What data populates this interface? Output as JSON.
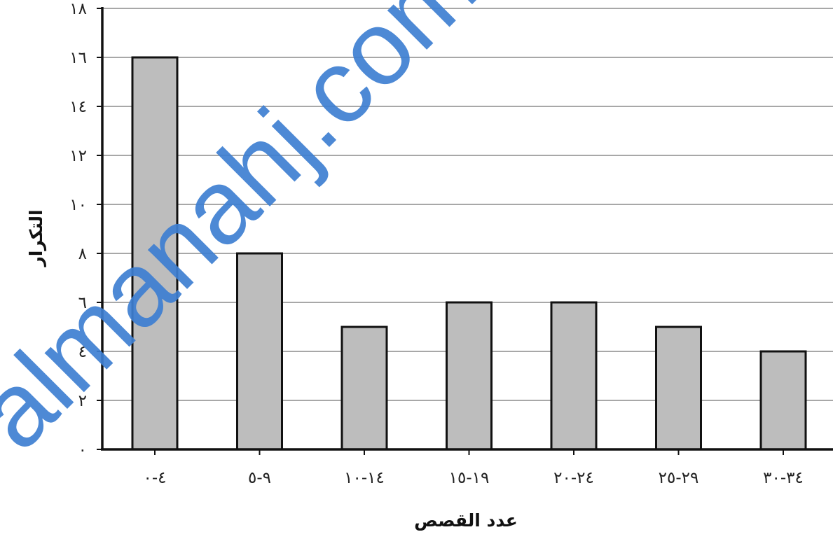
{
  "chart_data": {
    "type": "bar",
    "categories": [
      "٤-٠",
      "٩-٥",
      "١٤-١٠",
      "١٩-١٥",
      "٢٤-٢٠",
      "٢٩-٢٥",
      "٣٤-٣٠"
    ],
    "values": [
      16,
      8,
      5,
      6,
      6,
      5,
      4
    ],
    "xlabel": "عدد القصص",
    "ylabel": "التكرار",
    "ylim": [
      0,
      18
    ],
    "y_ticks": [
      0,
      2,
      4,
      6,
      8,
      10,
      12,
      14,
      16,
      18
    ],
    "y_tick_labels": [
      "٠",
      "٢",
      "٤",
      "٦",
      "٨",
      "١٠",
      "١٢",
      "١٤",
      "١٦",
      "١٨"
    ],
    "grid": true,
    "bar_color": "#bdbdbd",
    "bar_edge_color": "#111111"
  },
  "watermark": {
    "text": "almanahj.com",
    "color": "#3e7fd2"
  }
}
